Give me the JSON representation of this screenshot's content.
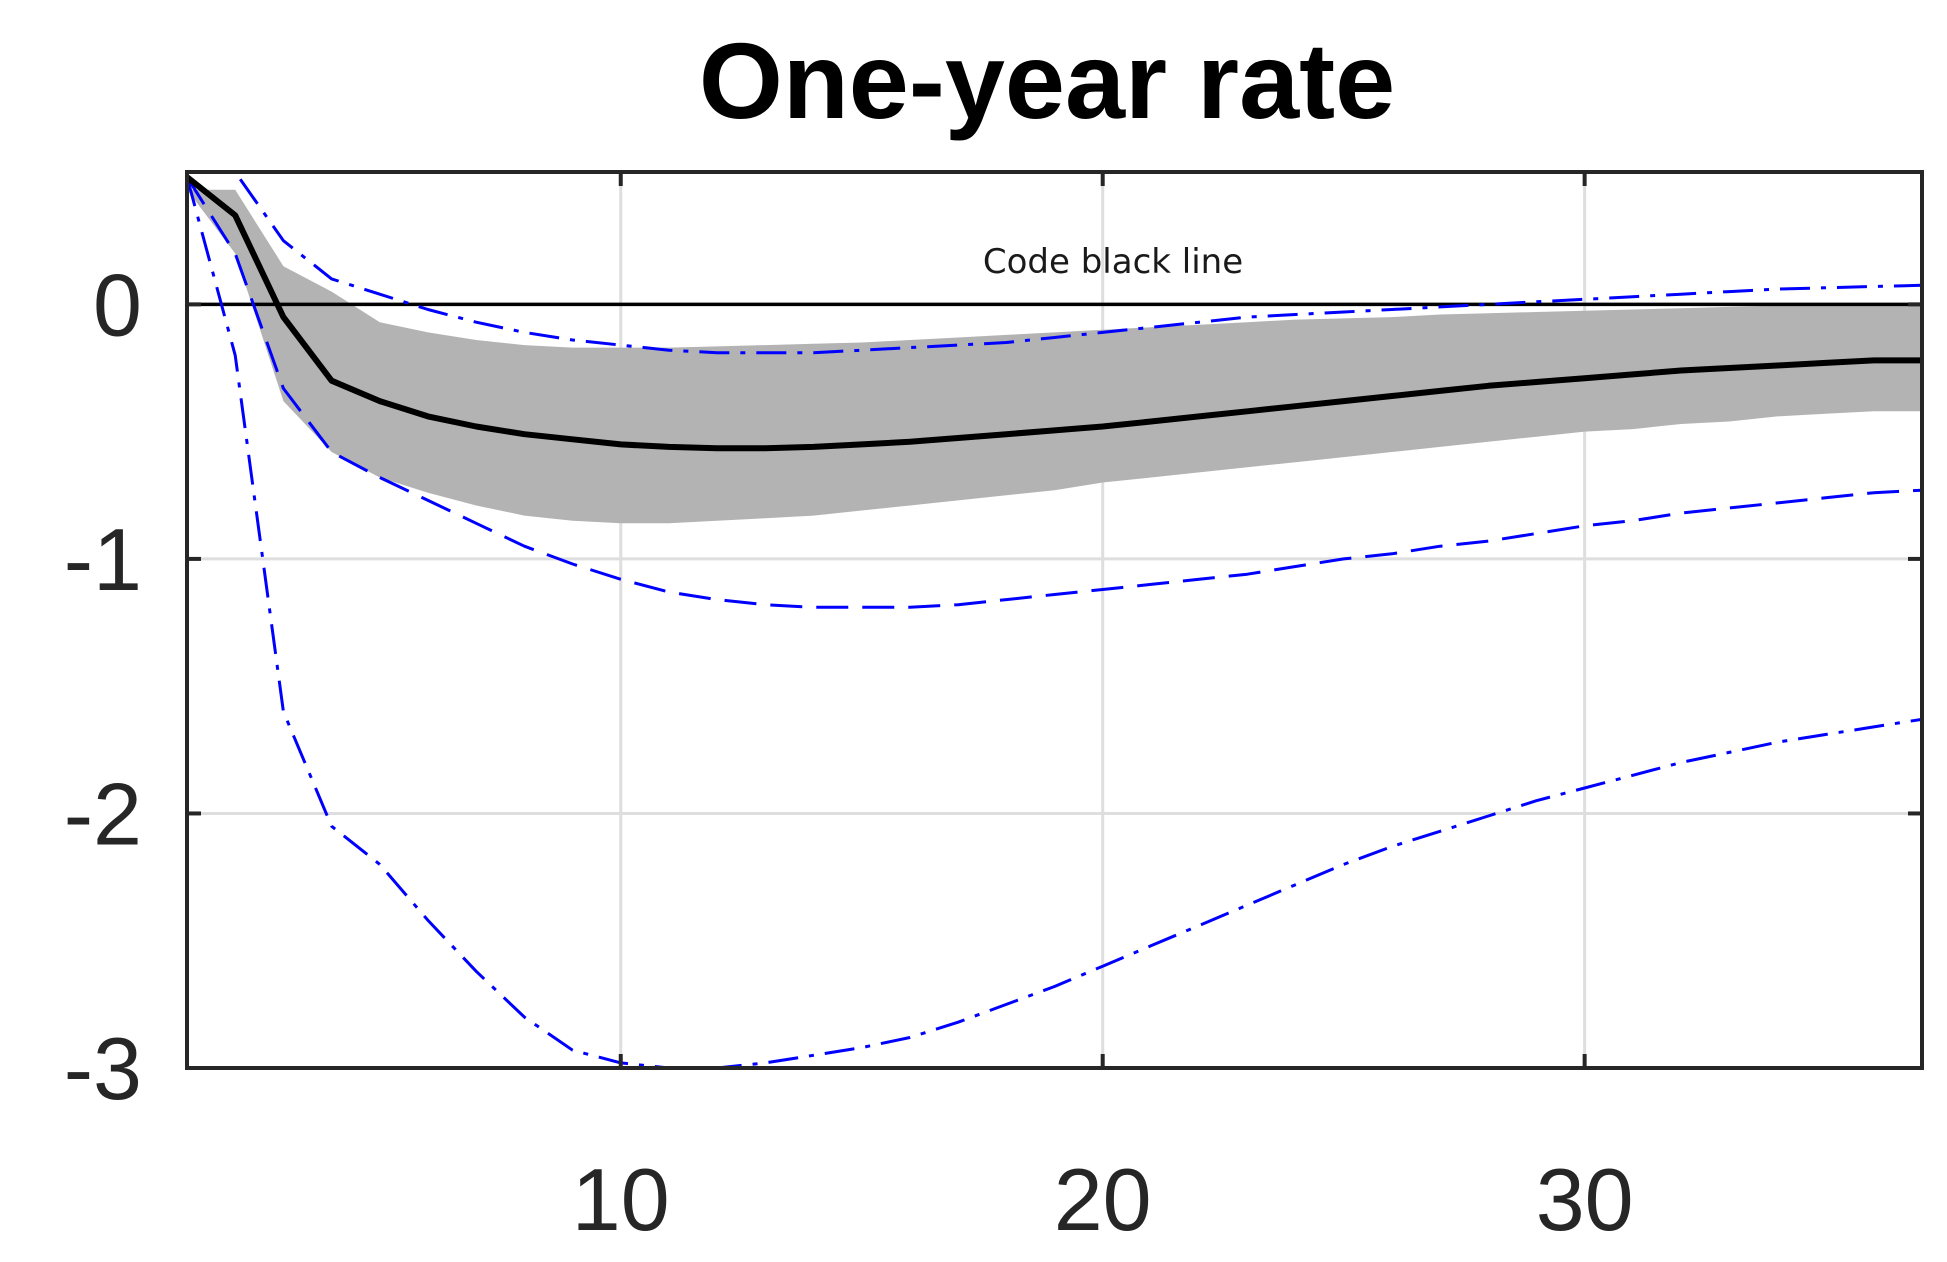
{
  "chart_data": {
    "type": "line",
    "title": "One-year rate",
    "xlabel": "",
    "ylabel": "",
    "xlim": [
      1,
      37
    ],
    "ylim": [
      -3,
      0.52
    ],
    "grid": true,
    "x_ticks": [
      10,
      20,
      30
    ],
    "y_ticks": [
      0,
      -1,
      -2,
      -3
    ],
    "x_tick_labels": [
      "10",
      "20",
      "30"
    ],
    "y_tick_labels": [
      "0",
      "-1",
      "-2",
      "-3"
    ],
    "zero_line": 0,
    "annotation": "Code black line",
    "colors": {
      "median": "#000000",
      "band": "#b3b3b3",
      "bounds": "#0000ff",
      "grid": "#dedede",
      "axis": "#262626"
    },
    "band": {
      "x": [
        1,
        2,
        3,
        4,
        5,
        6,
        7,
        8,
        9,
        10,
        11,
        12,
        13,
        14,
        15,
        16,
        17,
        18,
        19,
        20,
        21,
        22,
        23,
        24,
        25,
        26,
        27,
        28,
        29,
        30,
        31,
        32,
        33,
        34,
        35,
        36,
        37
      ],
      "upper": [
        0.45,
        0.45,
        0.15,
        0.05,
        -0.07,
        -0.11,
        -0.14,
        -0.16,
        -0.17,
        -0.17,
        -0.17,
        -0.165,
        -0.16,
        -0.155,
        -0.15,
        -0.14,
        -0.13,
        -0.12,
        -0.11,
        -0.1,
        -0.09,
        -0.08,
        -0.07,
        -0.06,
        -0.055,
        -0.05,
        -0.04,
        -0.035,
        -0.03,
        -0.025,
        -0.02,
        -0.015,
        -0.01,
        -0.005,
        0.0,
        0.0,
        0.0
      ],
      "lower": [
        0.45,
        0.2,
        -0.38,
        -0.58,
        -0.68,
        -0.74,
        -0.79,
        -0.83,
        -0.85,
        -0.86,
        -0.86,
        -0.85,
        -0.84,
        -0.83,
        -0.81,
        -0.79,
        -0.77,
        -0.75,
        -0.73,
        -0.7,
        -0.68,
        -0.66,
        -0.64,
        -0.62,
        -0.6,
        -0.58,
        -0.56,
        -0.54,
        -0.52,
        -0.5,
        -0.49,
        -0.47,
        -0.46,
        -0.44,
        -0.43,
        -0.42,
        -0.42
      ]
    },
    "series": [
      {
        "style": "solid",
        "x": [
          1,
          2,
          3,
          4,
          5,
          6,
          7,
          8,
          9,
          10,
          11,
          12,
          13,
          14,
          15,
          16,
          17,
          18,
          19,
          20,
          21,
          22,
          23,
          24,
          25,
          26,
          27,
          28,
          29,
          30,
          31,
          32,
          33,
          34,
          35,
          36,
          37
        ],
        "values": [
          0.5,
          0.35,
          -0.05,
          -0.3,
          -0.38,
          -0.44,
          -0.48,
          -0.51,
          -0.53,
          -0.55,
          -0.56,
          -0.565,
          -0.565,
          -0.56,
          -0.55,
          -0.54,
          -0.525,
          -0.51,
          -0.495,
          -0.48,
          -0.46,
          -0.44,
          -0.42,
          -0.4,
          -0.38,
          -0.36,
          -0.34,
          -0.32,
          -0.305,
          -0.29,
          -0.275,
          -0.26,
          -0.25,
          -0.24,
          -0.23,
          -0.22,
          -0.22
        ]
      },
      {
        "style": "dashed",
        "x": [
          1,
          2,
          3,
          4,
          5,
          6,
          7,
          8,
          9,
          10,
          11,
          12,
          13,
          14,
          15,
          16,
          17,
          18,
          19,
          20,
          21,
          22,
          23,
          24,
          25,
          26,
          27,
          28,
          29,
          30,
          31,
          32,
          33,
          34,
          35,
          36,
          37
        ],
        "values": [
          0.5,
          0.2,
          -0.33,
          -0.58,
          -0.68,
          -0.77,
          -0.86,
          -0.95,
          -1.02,
          -1.08,
          -1.13,
          -1.16,
          -1.18,
          -1.19,
          -1.19,
          -1.19,
          -1.18,
          -1.16,
          -1.14,
          -1.12,
          -1.1,
          -1.08,
          -1.06,
          -1.03,
          -1.0,
          -0.98,
          -0.95,
          -0.93,
          -0.9,
          -0.87,
          -0.85,
          -0.82,
          -0.8,
          -0.78,
          -0.76,
          -0.74,
          -0.73
        ]
      },
      {
        "style": "dashdot",
        "x": [
          1,
          2,
          3,
          4,
          5,
          6,
          7,
          8,
          9,
          10,
          11,
          12,
          13,
          14,
          15,
          16,
          17,
          18,
          19,
          20,
          21,
          22,
          23,
          24,
          25,
          26,
          27,
          28,
          29,
          30,
          31,
          32,
          33,
          34,
          35,
          36,
          37
        ],
        "values": [
          0.52,
          0.52,
          0.25,
          0.1,
          0.04,
          -0.02,
          -0.07,
          -0.11,
          -0.14,
          -0.16,
          -0.18,
          -0.19,
          -0.19,
          -0.19,
          -0.18,
          -0.17,
          -0.16,
          -0.15,
          -0.13,
          -0.11,
          -0.09,
          -0.07,
          -0.05,
          -0.04,
          -0.03,
          -0.02,
          -0.01,
          0.0,
          0.01,
          0.02,
          0.03,
          0.04,
          0.05,
          0.06,
          0.065,
          0.07,
          0.075
        ]
      },
      {
        "style": "dashdot",
        "x": [
          1,
          2,
          3,
          4,
          5,
          6,
          7,
          8,
          9,
          10,
          11,
          12,
          13,
          14,
          15,
          16,
          17,
          18,
          19,
          20,
          21,
          22,
          23,
          24,
          25,
          26,
          27,
          28,
          29,
          30,
          31,
          32,
          33,
          34,
          35,
          36,
          37
        ],
        "values": [
          0.5,
          -0.2,
          -1.6,
          -2.05,
          -2.2,
          -2.42,
          -2.62,
          -2.8,
          -2.93,
          -2.98,
          -3.0,
          -3.0,
          -2.98,
          -2.95,
          -2.92,
          -2.88,
          -2.82,
          -2.75,
          -2.68,
          -2.6,
          -2.52,
          -2.44,
          -2.36,
          -2.28,
          -2.2,
          -2.13,
          -2.07,
          -2.01,
          -1.95,
          -1.9,
          -1.85,
          -1.8,
          -1.76,
          -1.72,
          -1.69,
          -1.66,
          -1.63
        ]
      }
    ]
  }
}
